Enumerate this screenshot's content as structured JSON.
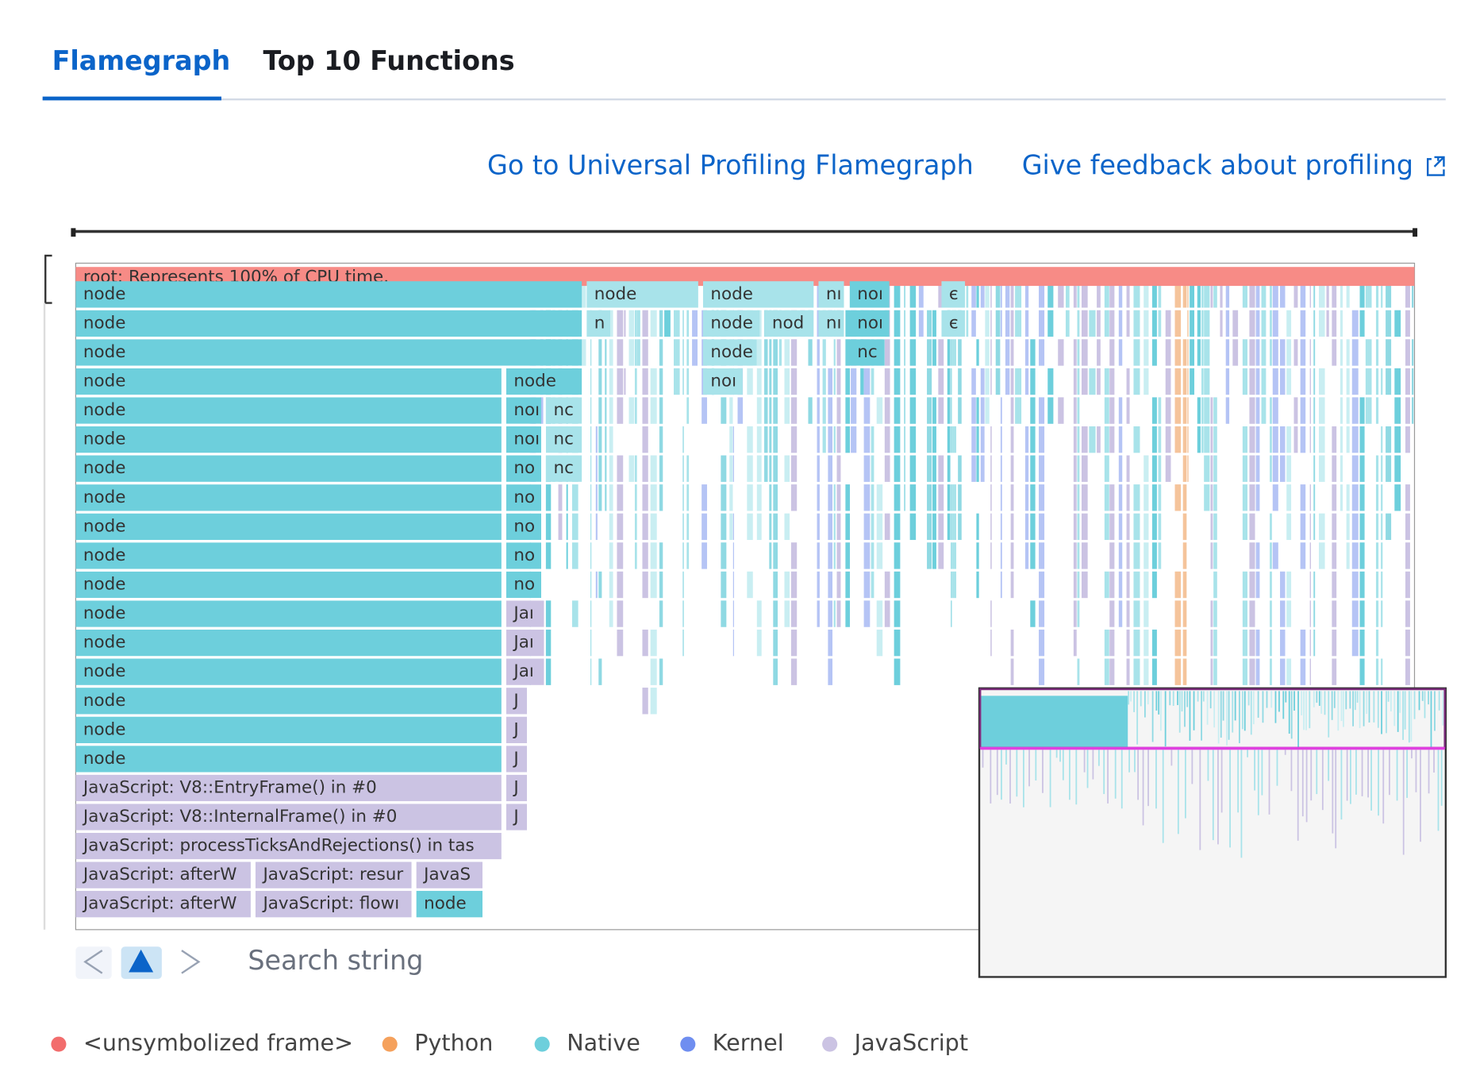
{
  "tabs": [
    "Flamegraph",
    "Top 10 Functions"
  ],
  "links": [
    "Go to Universal Profiling Flamegraph",
    "Give feedback about profiling"
  ],
  "flamegraph": {
    "root": "root: Represents 100% of CPU time.",
    "frames": [
      "node",
      "node",
      "node",
      "nı",
      "noı",
      "є",
      "node",
      "n",
      "node",
      "nod",
      "nı",
      "noı",
      "є",
      "node",
      "node",
      "nc",
      "node",
      "node",
      "noı",
      "node",
      "noı",
      "nc",
      "node",
      "noı",
      "nc",
      "node",
      "no",
      "nc",
      "node",
      "no",
      "node",
      "no",
      "node",
      "no",
      "node",
      "no",
      "node",
      "Jaı",
      "node",
      "Jaı",
      "node",
      "Jaı",
      "node",
      "J",
      "node",
      "J",
      "node",
      "J",
      "JavaScript: V8::EntryFrame() in #0",
      "J",
      "JavaScript: V8::InternalFrame() in #0",
      "J",
      "JavaScript: processTicksAndRejections() in tas",
      "JavaScript: afterW",
      "JavaScript: resur",
      "JavaS",
      "JavaScript: afterW",
      "JavaScript: flowı",
      "node"
    ]
  },
  "search_placeholder": "Search string",
  "legend": [
    {
      "name": "<unsymbolized frame>",
      "color": "#f26d6d"
    },
    {
      "name": "Python",
      "color": "#f5a15c"
    },
    {
      "name": "Native",
      "color": "#6dcfdc"
    },
    {
      "name": "Kernel",
      "color": "#6f8ef0"
    },
    {
      "name": "JavaScript",
      "color": "#cbc3e3"
    }
  ]
}
